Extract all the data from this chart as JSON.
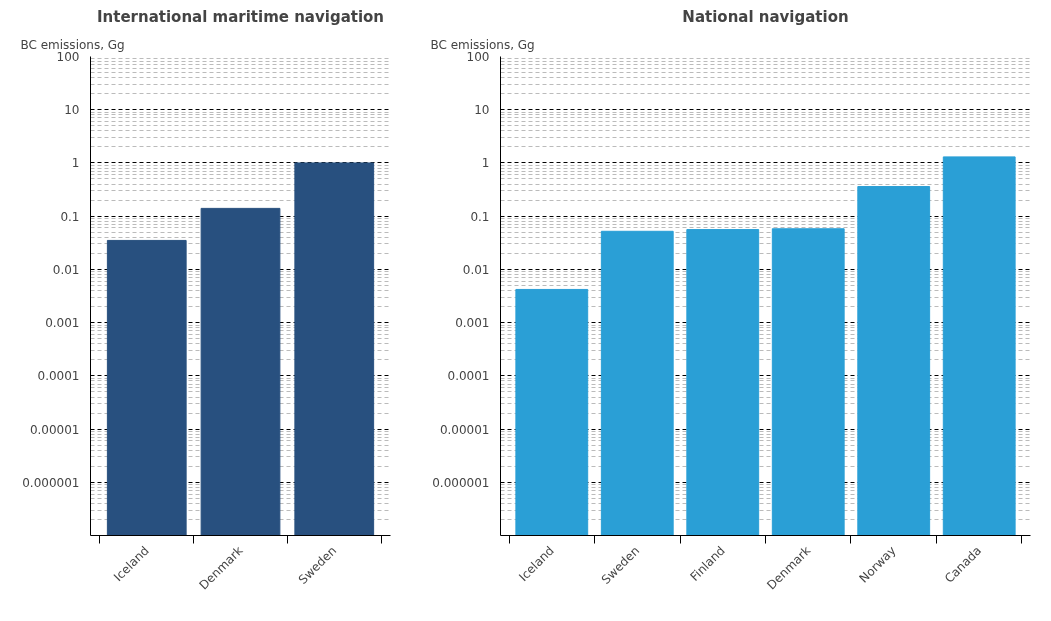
{
  "chart_data": [
    {
      "type": "bar",
      "title": "International maritime navigation",
      "ylabel": "BC emissions, Gg",
      "categories": [
        "Iceland",
        "Denmark",
        "Sweden"
      ],
      "values": [
        0.035,
        0.14,
        1.0
      ],
      "color": "#28507f",
      "log": "y",
      "ylim": [
        1e-07,
        100
      ],
      "yticks": [
        {
          "value": 1e-06,
          "label": "0.000001"
        },
        {
          "value": 1e-05,
          "label": "0.00001"
        },
        {
          "value": 0.0001,
          "label": "0.0001"
        },
        {
          "value": 0.001,
          "label": "0.001"
        },
        {
          "value": 0.01,
          "label": "0.01"
        },
        {
          "value": 0.1,
          "label": "0.1"
        },
        1,
        10,
        100
      ],
      "grid": "y",
      "legend": false
    },
    {
      "type": "bar",
      "title": "National navigation",
      "ylabel": "BC emissions, Gg",
      "categories": [
        "Iceland",
        "Sweden",
        "Finland",
        "Denmark",
        "Norway",
        "Canada"
      ],
      "values": [
        0.0042,
        0.052,
        0.056,
        0.058,
        0.36,
        1.3
      ],
      "color": "#2a9fd6",
      "log": "y",
      "ylim": [
        1e-07,
        100
      ],
      "yticks": [
        {
          "value": 1e-06,
          "label": "0.000001"
        },
        {
          "value": 1e-05,
          "label": "0.00001"
        },
        {
          "value": 0.0001,
          "label": "0.0001"
        },
        {
          "value": 0.001,
          "label": "0.001"
        },
        {
          "value": 0.01,
          "label": "0.01"
        },
        {
          "value": 0.1,
          "label": "0.1"
        },
        1,
        10,
        100
      ],
      "grid": "y",
      "legend": false
    }
  ]
}
